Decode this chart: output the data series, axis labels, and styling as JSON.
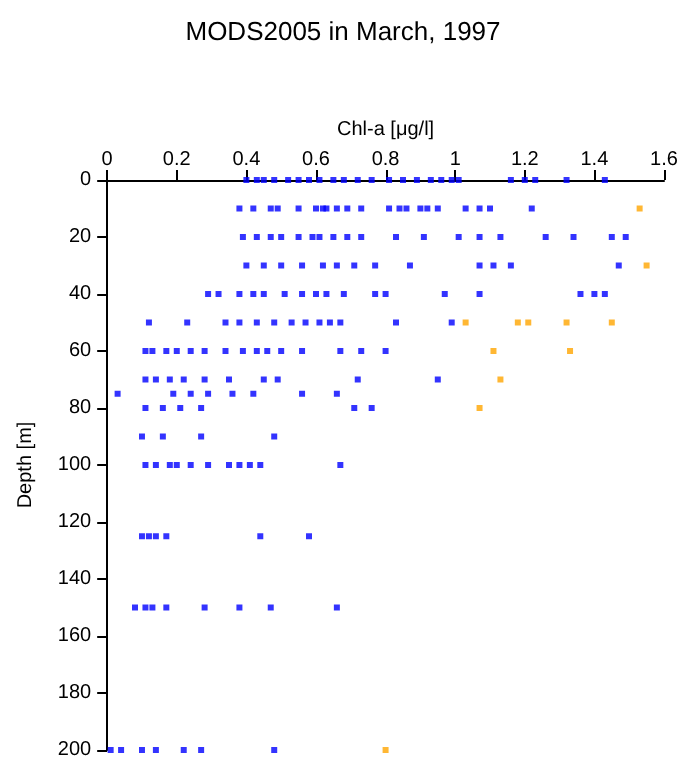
{
  "chart_data": {
    "type": "scatter",
    "title": "MODS2005 in March, 1997",
    "xlabel": "Chl-a [μg/l]",
    "ylabel": "Depth [m]",
    "xlim": [
      0,
      1.6
    ],
    "xticks": [
      0,
      0.2,
      0.4,
      0.6,
      0.8,
      1,
      1.2,
      1.4,
      1.6
    ],
    "ylim": [
      200,
      0
    ],
    "yticks": [
      0,
      20,
      40,
      60,
      80,
      100,
      120,
      140,
      160,
      180,
      200
    ],
    "grid": false,
    "marker": "square",
    "series": [
      {
        "color": "#0000ff",
        "x": [
          0.4,
          0.43,
          0.45,
          0.48,
          0.52,
          0.55,
          0.58,
          0.61,
          0.65,
          0.68,
          0.72,
          0.76,
          0.81,
          0.85,
          0.89,
          0.93,
          0.96,
          0.99,
          1.01,
          1.16,
          1.2,
          1.23,
          1.32,
          1.43,
          0.38,
          0.42,
          0.47,
          0.49,
          0.55,
          0.6,
          0.62,
          0.63,
          0.66,
          0.69,
          0.73,
          0.81,
          0.84,
          0.86,
          0.9,
          0.92,
          0.95,
          1.03,
          1.07,
          1.1,
          1.22,
          0.39,
          0.43,
          0.47,
          0.5,
          0.55,
          0.59,
          0.61,
          0.65,
          0.69,
          0.73,
          0.83,
          0.91,
          1.01,
          1.07,
          1.13,
          1.26,
          1.34,
          1.45,
          1.49,
          0.4,
          0.45,
          0.5,
          0.56,
          0.62,
          0.66,
          0.71,
          0.77,
          0.87,
          1.07,
          1.11,
          1.16,
          1.47,
          0.29,
          0.32,
          0.38,
          0.42,
          0.45,
          0.51,
          0.56,
          0.6,
          0.63,
          0.68,
          0.77,
          0.8,
          0.97,
          1.07,
          1.36,
          1.4,
          1.43,
          0.12,
          0.23,
          0.34,
          0.38,
          0.43,
          0.48,
          0.53,
          0.57,
          0.61,
          0.64,
          0.67,
          0.83,
          0.99,
          0.11,
          0.13,
          0.17,
          0.2,
          0.24,
          0.28,
          0.34,
          0.39,
          0.43,
          0.46,
          0.5,
          0.56,
          0.67,
          0.73,
          0.8,
          0.11,
          0.14,
          0.18,
          0.22,
          0.28,
          0.35,
          0.45,
          0.49,
          0.72,
          0.95,
          0.03,
          0.19,
          0.24,
          0.29,
          0.36,
          0.42,
          0.56,
          0.66,
          0.11,
          0.16,
          0.21,
          0.27,
          0.71,
          0.76,
          0.1,
          0.16,
          0.27,
          0.48,
          0.11,
          0.14,
          0.18,
          0.2,
          0.24,
          0.29,
          0.35,
          0.38,
          0.41,
          0.44,
          0.67,
          0.1,
          0.12,
          0.14,
          0.17,
          0.44,
          0.58,
          0.08,
          0.11,
          0.13,
          0.17,
          0.28,
          0.38,
          0.47,
          0.66,
          0.01,
          0.04,
          0.1,
          0.14,
          0.22,
          0.27,
          0.48
        ],
        "values": [
          0,
          0,
          0,
          0,
          0,
          0,
          0,
          0,
          0,
          0,
          0,
          0,
          0,
          0,
          0,
          0,
          0,
          0,
          0,
          0,
          0,
          0,
          0,
          0,
          10,
          10,
          10,
          10,
          10,
          10,
          10,
          10,
          10,
          10,
          10,
          10,
          10,
          10,
          10,
          10,
          10,
          10,
          10,
          10,
          10,
          20,
          20,
          20,
          20,
          20,
          20,
          20,
          20,
          20,
          20,
          20,
          20,
          20,
          20,
          20,
          20,
          20,
          20,
          20,
          30,
          30,
          30,
          30,
          30,
          30,
          30,
          30,
          30,
          30,
          30,
          30,
          30,
          40,
          40,
          40,
          40,
          40,
          40,
          40,
          40,
          40,
          40,
          40,
          40,
          40,
          40,
          40,
          40,
          40,
          50,
          50,
          50,
          50,
          50,
          50,
          50,
          50,
          50,
          50,
          50,
          50,
          50,
          60,
          60,
          60,
          60,
          60,
          60,
          60,
          60,
          60,
          60,
          60,
          60,
          60,
          60,
          60,
          70,
          70,
          70,
          70,
          70,
          70,
          70,
          70,
          70,
          70,
          75,
          75,
          75,
          75,
          75,
          75,
          75,
          75,
          80,
          80,
          80,
          80,
          80,
          80,
          90,
          90,
          90,
          90,
          100,
          100,
          100,
          100,
          100,
          100,
          100,
          100,
          100,
          100,
          100,
          125,
          125,
          125,
          125,
          125,
          125,
          150,
          150,
          150,
          150,
          150,
          150,
          150,
          150,
          200,
          200,
          200,
          200,
          200,
          200,
          200
        ]
      },
      {
        "color": "#ffa500",
        "x": [
          1.53,
          1.55,
          1.03,
          1.18,
          1.21,
          1.32,
          1.45,
          1.11,
          1.33,
          1.13,
          1.07,
          0.8
        ],
        "values": [
          10,
          30,
          50,
          50,
          50,
          50,
          50,
          60,
          60,
          70,
          80,
          200
        ]
      }
    ]
  }
}
